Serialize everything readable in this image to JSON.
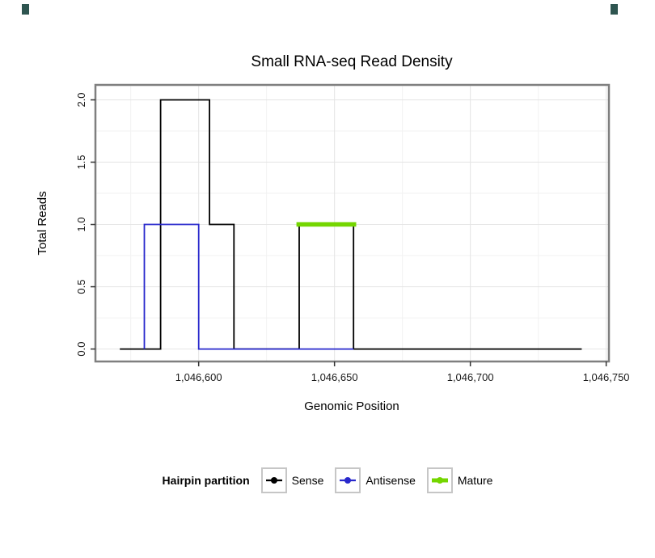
{
  "chart_data": {
    "type": "line",
    "title": "Small RNA-seq Read Density",
    "xlabel": "Genomic Position",
    "ylabel": "Total Reads",
    "x_ticks": [
      1046600,
      1046650,
      1046700,
      1046750
    ],
    "x_tick_labels": [
      "1,046,600",
      "1,046,650",
      "1,046,700",
      "1,046,750"
    ],
    "y_ticks": [
      0,
      0.5,
      1,
      1.5,
      2
    ],
    "y_tick_labels": [
      "0.0",
      "0.5",
      "1.0",
      "1.5",
      "2.0"
    ],
    "xlim": [
      1046562,
      1046751
    ],
    "ylim": [
      -0.1,
      2.12
    ],
    "grid": true,
    "legend_position": "bottom",
    "legend_title": "Hairpin partition",
    "panel_border_color": "#7f7f7f",
    "grid_major_color": "#e4e4e4",
    "grid_minor_color": "#f2f2f2",
    "series": [
      {
        "name": "Sense",
        "color": "#000000",
        "width": 1.8,
        "points": [
          [
            1046571,
            0
          ],
          [
            1046586,
            0
          ],
          [
            1046586,
            2
          ],
          [
            1046604,
            2
          ],
          [
            1046604,
            1
          ],
          [
            1046613,
            1
          ],
          [
            1046613,
            0
          ],
          [
            1046637,
            0
          ],
          [
            1046637,
            1
          ],
          [
            1046657,
            1
          ],
          [
            1046657,
            0
          ],
          [
            1046741,
            0
          ]
        ]
      },
      {
        "name": "Antisense",
        "color": "#2828cc",
        "width": 1.8,
        "points": [
          [
            1046580,
            0
          ],
          [
            1046580,
            1
          ],
          [
            1046600,
            1
          ],
          [
            1046600,
            0
          ],
          [
            1046657,
            0
          ]
        ]
      },
      {
        "name": "Mature",
        "color": "#74d600",
        "width": 5.5,
        "points": [
          [
            1046636,
            1
          ],
          [
            1046658,
            1
          ]
        ]
      }
    ]
  }
}
